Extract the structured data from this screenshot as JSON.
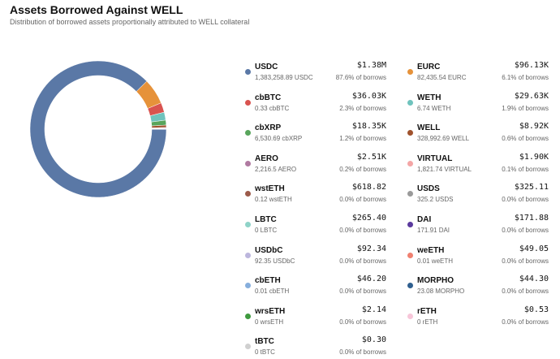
{
  "header": {
    "title": "Assets Borrowed Against WELL",
    "subtitle": "Distribution of borrowed assets proportionally attributed to WELL collateral"
  },
  "chart_data": {
    "type": "pie",
    "style": "donut",
    "title": "Assets Borrowed Against WELL",
    "unit": "USD",
    "slices": [
      {
        "name": "USDC",
        "value_label": "$1.38M",
        "value": 1380000,
        "amount": "1,383,258.89 USDC",
        "pct_label": "87.6% of borrows",
        "percent": 87.6,
        "color": "#5a78a6"
      },
      {
        "name": "EURC",
        "value_label": "$96.13K",
        "value": 96130,
        "amount": "82,435.54 EURC",
        "pct_label": "6.1% of borrows",
        "percent": 6.1,
        "color": "#e6923a"
      },
      {
        "name": "cbBTC",
        "value_label": "$36.03K",
        "value": 36030,
        "amount": "0.33 cbBTC",
        "pct_label": "2.3% of borrows",
        "percent": 2.3,
        "color": "#d9534f"
      },
      {
        "name": "WETH",
        "value_label": "$29.63K",
        "value": 29630,
        "amount": "6.74 WETH",
        "pct_label": "1.9% of borrows",
        "percent": 1.9,
        "color": "#6fc3bd"
      },
      {
        "name": "cbXRP",
        "value_label": "$18.35K",
        "value": 18350,
        "amount": "6,530.69 cbXRP",
        "pct_label": "1.2% of borrows",
        "percent": 1.2,
        "color": "#58a55c"
      },
      {
        "name": "WELL",
        "value_label": "$8.92K",
        "value": 8920,
        "amount": "328,992.69 WELL",
        "pct_label": "0.6% of borrows",
        "percent": 0.6,
        "color": "#a0522d"
      },
      {
        "name": "AERO",
        "value_label": "$2.51K",
        "value": 2510,
        "amount": "2,216.5 AERO",
        "pct_label": "0.2% of borrows",
        "percent": 0.2,
        "color": "#b07aa1"
      },
      {
        "name": "VIRTUAL",
        "value_label": "$1.90K",
        "value": 1900,
        "amount": "1,821.74 VIRTUAL",
        "pct_label": "0.1% of borrows",
        "percent": 0.1,
        "color": "#f4a6a6"
      },
      {
        "name": "wstETH",
        "value_label": "$618.82",
        "value": 618.82,
        "amount": "0.12 wstETH",
        "pct_label": "0.0% of borrows",
        "percent": 0.0,
        "color": "#9c5b4a"
      },
      {
        "name": "USDS",
        "value_label": "$325.11",
        "value": 325.11,
        "amount": "325.2 USDS",
        "pct_label": "0.0% of borrows",
        "percent": 0.0,
        "color": "#9a9a9a"
      },
      {
        "name": "LBTC",
        "value_label": "$265.40",
        "value": 265.4,
        "amount": "0 LBTC",
        "pct_label": "0.0% of borrows",
        "percent": 0.0,
        "color": "#8fd3c8"
      },
      {
        "name": "DAI",
        "value_label": "$171.88",
        "value": 171.88,
        "amount": "171.91 DAI",
        "pct_label": "0.0% of borrows",
        "percent": 0.0,
        "color": "#5b3a9e"
      },
      {
        "name": "USDbC",
        "value_label": "$92.34",
        "value": 92.34,
        "amount": "92.35 USDbC",
        "pct_label": "0.0% of borrows",
        "percent": 0.0,
        "color": "#bcb6dd"
      },
      {
        "name": "weETH",
        "value_label": "$49.05",
        "value": 49.05,
        "amount": "0.01 weETH",
        "pct_label": "0.0% of borrows",
        "percent": 0.0,
        "color": "#f08070"
      },
      {
        "name": "cbETH",
        "value_label": "$46.20",
        "value": 46.2,
        "amount": "0.01 cbETH",
        "pct_label": "0.0% of borrows",
        "percent": 0.0,
        "color": "#86aedc"
      },
      {
        "name": "MORPHO",
        "value_label": "$44.30",
        "value": 44.3,
        "amount": "23.08 MORPHO",
        "pct_label": "0.0% of borrows",
        "percent": 0.0,
        "color": "#2f5f8f"
      },
      {
        "name": "wrsETH",
        "value_label": "$2.14",
        "value": 2.14,
        "amount": "0 wrsETH",
        "pct_label": "0.0% of borrows",
        "percent": 0.0,
        "color": "#3f9a3f"
      },
      {
        "name": "rETH",
        "value_label": "$0.53",
        "value": 0.53,
        "amount": "0 rETH",
        "pct_label": "0.0% of borrows",
        "percent": 0.0,
        "color": "#f7c6d9"
      },
      {
        "name": "tBTC",
        "value_label": "$0.30",
        "value": 0.3,
        "amount": "0 tBTC",
        "pct_label": "0.0% of borrows",
        "percent": 0.0,
        "color": "#d0d0d0"
      }
    ]
  }
}
